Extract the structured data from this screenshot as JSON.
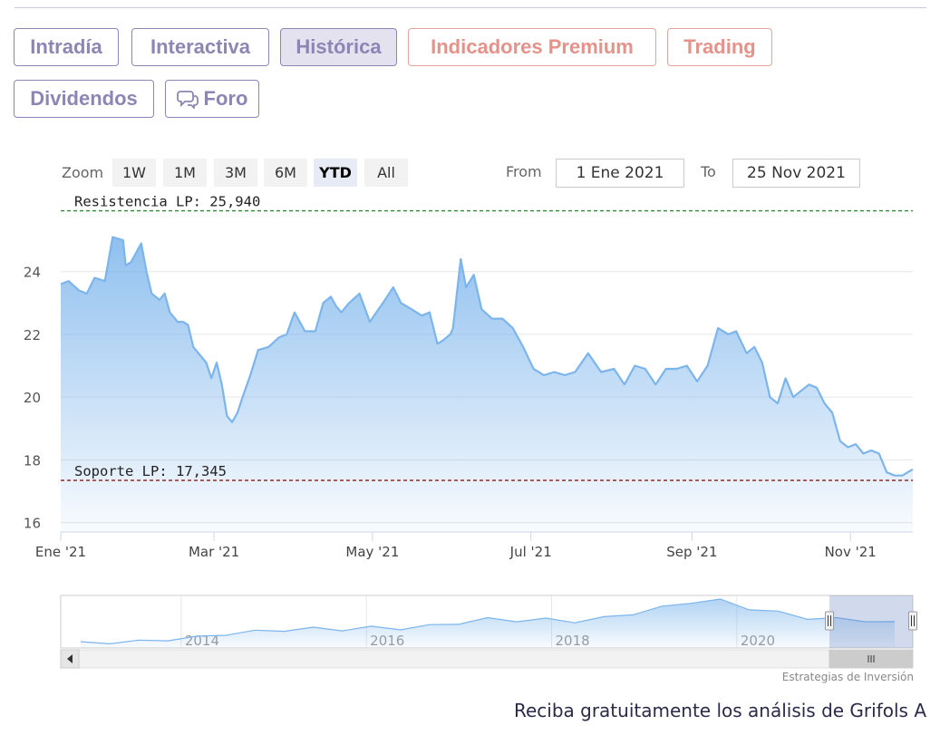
{
  "tabs": [
    {
      "label": "Intradía",
      "style": "purple",
      "active": false
    },
    {
      "label": "Interactiva",
      "style": "purple",
      "active": false
    },
    {
      "label": "Histórica",
      "style": "purple",
      "active": true
    },
    {
      "label": "Indicadores Premium",
      "style": "salmon",
      "active": false
    },
    {
      "label": "Trading",
      "style": "salmon",
      "active": false
    },
    {
      "label": "Dividendos",
      "style": "purple",
      "active": false
    },
    {
      "label": "Foro",
      "style": "purple",
      "active": false,
      "icon": "speech-bubbles-icon"
    }
  ],
  "range_selector": {
    "zoom_label": "Zoom",
    "buttons": [
      "1W",
      "1M",
      "3M",
      "6M",
      "YTD",
      "All"
    ],
    "selected": "YTD",
    "from_label": "From",
    "from_value": "1 Ene 2021",
    "to_label": "To",
    "to_value": "25 Nov 2021"
  },
  "colors": {
    "tab_purple": "#8d86b5",
    "tab_salmon": "#e4928a",
    "series_line": "#7cb5ec",
    "resistance_line": "#2e8b2e",
    "support_line": "#8b1a1a"
  },
  "chart_data": {
    "type": "area",
    "title": "",
    "xlabel": "",
    "ylabel": "",
    "ylim": [
      15.7,
      26.1
    ],
    "y_ticks": [
      16,
      18,
      20,
      22,
      24
    ],
    "x_range": [
      "2021-01-01",
      "2021-11-25"
    ],
    "x_ticks": [
      {
        "date": "2021-01-01",
        "label": "Ene '21"
      },
      {
        "date": "2021-03-01",
        "label": "Mar '21"
      },
      {
        "date": "2021-05-01",
        "label": "May '21"
      },
      {
        "date": "2021-07-01",
        "label": "Jul '21"
      },
      {
        "date": "2021-09-01",
        "label": "Sep '21"
      },
      {
        "date": "2021-11-01",
        "label": "Nov '21"
      }
    ],
    "grid": true,
    "series": [
      {
        "x": [
          "2021-01-01",
          "2021-01-04",
          "2021-01-08",
          "2021-01-11",
          "2021-01-14",
          "2021-01-18",
          "2021-01-21",
          "2021-01-25",
          "2021-01-26",
          "2021-01-28",
          "2021-02-01",
          "2021-02-03",
          "2021-02-05",
          "2021-02-08",
          "2021-02-10",
          "2021-02-12",
          "2021-02-15",
          "2021-02-17",
          "2021-02-19",
          "2021-02-21",
          "2021-02-24",
          "2021-02-26",
          "2021-02-28",
          "2021-03-02",
          "2021-03-04",
          "2021-03-06",
          "2021-03-08",
          "2021-03-10",
          "2021-03-12",
          "2021-03-15",
          "2021-03-18",
          "2021-03-22",
          "2021-03-26",
          "2021-03-29",
          "2021-04-01",
          "2021-04-05",
          "2021-04-09",
          "2021-04-12",
          "2021-04-15",
          "2021-04-17",
          "2021-04-19",
          "2021-04-22",
          "2021-04-26",
          "2021-04-30",
          "2021-05-05",
          "2021-05-09",
          "2021-05-12",
          "2021-05-16",
          "2021-05-20",
          "2021-05-23",
          "2021-05-26",
          "2021-05-28",
          "2021-05-31",
          "2021-06-01",
          "2021-06-04",
          "2021-06-06",
          "2021-06-09",
          "2021-06-12",
          "2021-06-16",
          "2021-06-20",
          "2021-06-24",
          "2021-06-28",
          "2021-07-02",
          "2021-07-06",
          "2021-07-10",
          "2021-07-14",
          "2021-07-18",
          "2021-07-23",
          "2021-07-28",
          "2021-08-02",
          "2021-08-06",
          "2021-08-10",
          "2021-08-14",
          "2021-08-18",
          "2021-08-22",
          "2021-08-26",
          "2021-08-30",
          "2021-09-03",
          "2021-09-07",
          "2021-09-11",
          "2021-09-15",
          "2021-09-18",
          "2021-09-22",
          "2021-09-25",
          "2021-09-28",
          "2021-10-01",
          "2021-10-04",
          "2021-10-07",
          "2021-10-10",
          "2021-10-13",
          "2021-10-16",
          "2021-10-19",
          "2021-10-22",
          "2021-10-25",
          "2021-10-28",
          "2021-10-31",
          "2021-11-03",
          "2021-11-06",
          "2021-11-09",
          "2021-11-12",
          "2021-11-15",
          "2021-11-18",
          "2021-11-21",
          "2021-11-25"
        ],
        "y": [
          23.6,
          23.7,
          23.4,
          23.3,
          23.8,
          23.7,
          25.1,
          25.0,
          24.2,
          24.3,
          24.9,
          24.0,
          23.3,
          23.1,
          23.3,
          22.7,
          22.4,
          22.4,
          22.3,
          21.6,
          21.3,
          21.1,
          20.6,
          21.1,
          20.4,
          19.4,
          19.2,
          19.5,
          20.0,
          20.7,
          21.5,
          21.6,
          21.9,
          22.0,
          22.7,
          22.1,
          22.1,
          23.0,
          23.2,
          22.9,
          22.7,
          23.0,
          23.3,
          22.4,
          23.0,
          23.5,
          23.0,
          22.8,
          22.6,
          22.7,
          21.7,
          21.8,
          22.0,
          22.2,
          24.4,
          23.5,
          23.9,
          22.8,
          22.5,
          22.5,
          22.2,
          21.6,
          20.9,
          20.7,
          20.8,
          20.7,
          20.8,
          21.4,
          20.8,
          20.9,
          20.4,
          21.0,
          20.9,
          20.4,
          20.9,
          20.9,
          21.0,
          20.5,
          21.0,
          22.2,
          22.0,
          22.1,
          21.4,
          21.6,
          21.1,
          20.0,
          19.8,
          20.6,
          20.0,
          20.2,
          20.4,
          20.3,
          19.8,
          19.5,
          18.6,
          18.4,
          18.5,
          18.2,
          18.3,
          18.2,
          17.6,
          17.5,
          17.5,
          17.7
        ]
      }
    ],
    "annotations": [
      {
        "label": "Resistencia LP: 25,940",
        "value": 25.94
      },
      {
        "label": "Soporte LP: 17,345",
        "value": 17.345
      }
    ],
    "navigator": {
      "x_ticks": [
        "2014",
        "2016",
        "2018",
        "2020"
      ],
      "x_range": [
        2012.7,
        2021.9
      ],
      "selection": [
        2021.0,
        2021.9
      ],
      "overview_y": [
        16.5,
        16.6,
        16.8,
        17.2,
        17.6,
        18.3,
        18.8,
        19.1,
        19.4,
        19.2,
        19.6,
        19.4,
        19.9,
        20.5,
        21.3,
        21.0,
        21.2,
        20.8,
        21.5,
        22.4,
        23.6,
        24.7,
        25.0,
        23.4,
        22.6,
        21.5,
        21.3,
        21.0,
        20.5
      ]
    }
  },
  "attribution": "Estrategias de Inversión",
  "cta_text": "Reciba gratuitamente los análisis de Grifols A"
}
